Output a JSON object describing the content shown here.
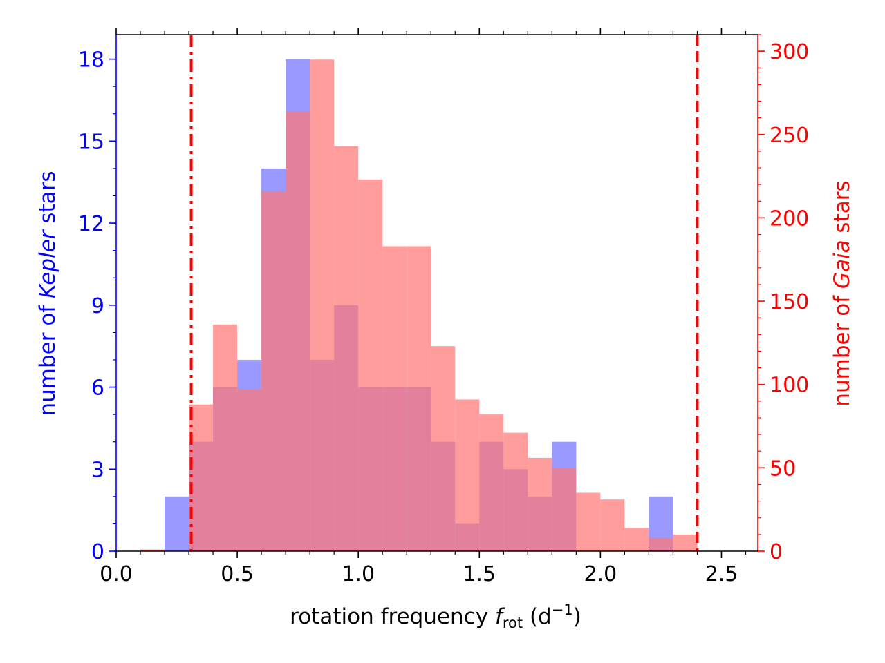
{
  "chart_data": {
    "type": "bar",
    "subtype": "overlaid-histogram-dual-axis",
    "bin_width": 0.1,
    "xlabel": {
      "prefix": "rotation frequency ",
      "symbol": "f",
      "symbol_sub": "rot",
      "units_open": " (d",
      "units_sup": "−1",
      "units_close": ")"
    },
    "ylabel_left": {
      "prefix": "number of ",
      "italic": "Kepler",
      "suffix": " stars"
    },
    "ylabel_right": {
      "prefix": "number of ",
      "italic": "Gaia",
      "suffix": " stars"
    },
    "xlim": [
      0.0,
      2.65
    ],
    "ylim_left": [
      0,
      18.9
    ],
    "ylim_right": [
      0,
      310
    ],
    "x_ticks": [
      0.0,
      0.5,
      1.0,
      1.5,
      2.0,
      2.5
    ],
    "x_tick_labels": [
      "0.0",
      "0.5",
      "1.0",
      "1.5",
      "2.0",
      "2.5"
    ],
    "x_minor_step": 0.1,
    "y_left_ticks": [
      0,
      3,
      6,
      9,
      12,
      15,
      18
    ],
    "y_left_tick_labels": [
      "0",
      "3",
      "6",
      "9",
      "12",
      "15",
      "18"
    ],
    "y_left_minor_step": 1,
    "y_right_ticks": [
      0,
      50,
      100,
      150,
      200,
      250,
      300
    ],
    "y_right_tick_labels": [
      "0",
      "50",
      "100",
      "150",
      "200",
      "250",
      "300"
    ],
    "y_right_minor_step": 10,
    "series": [
      {
        "name": "Kepler",
        "axis": "left",
        "color": "#7777ff",
        "opacity": 0.75,
        "bin_starts": [
          0.2,
          0.3,
          0.4,
          0.5,
          0.6,
          0.7,
          0.8,
          0.9,
          1.0,
          1.1,
          1.2,
          1.3,
          1.4,
          1.5,
          1.6,
          1.7,
          1.8,
          2.2
        ],
        "values": [
          2,
          4,
          6,
          7,
          14,
          18,
          7,
          9,
          6,
          6,
          6,
          4,
          1,
          4,
          3,
          2,
          4,
          2
        ]
      },
      {
        "name": "Gaia",
        "axis": "right",
        "color": "#ff7777",
        "opacity": 0.72,
        "bin_starts": [
          0.1,
          0.2,
          0.3,
          0.4,
          0.5,
          0.6,
          0.7,
          0.8,
          0.9,
          1.0,
          1.1,
          1.2,
          1.3,
          1.4,
          1.5,
          1.6,
          1.7,
          1.8,
          1.9,
          2.0,
          2.1,
          2.2,
          2.3
        ],
        "values": [
          1,
          0,
          88,
          136,
          97,
          216,
          264,
          295,
          243,
          223,
          183,
          183,
          123,
          91,
          82,
          71,
          56,
          50,
          35,
          31,
          14,
          8,
          10
        ]
      }
    ],
    "vlines": [
      {
        "x": 0.31,
        "style": "dashdot",
        "color": "#ff0000"
      },
      {
        "x": 2.4,
        "style": "dashed",
        "color": "#ff0000"
      }
    ],
    "left_axis_color": "#0000ff",
    "right_axis_color": "#ff0000",
    "grid": false,
    "legend": "none"
  }
}
